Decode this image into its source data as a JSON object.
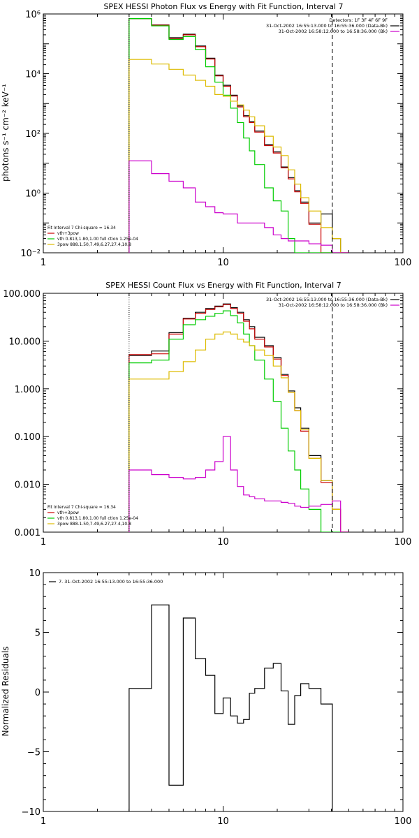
{
  "chart_data": [
    {
      "type": "line",
      "title": "SPEX HESSI Photon Flux vs Energy with Fit Function, Interval 7",
      "ylabel": "photons s⁻¹ cm⁻² keV⁻¹",
      "xlabel": "",
      "xscale": "log",
      "yscale": "log",
      "xlim": [
        1,
        100
      ],
      "ylim": [
        0.01,
        1000000
      ],
      "xticks": [
        {
          "v": 1,
          "label": "1"
        },
        {
          "v": 10,
          "label": "10"
        },
        {
          "v": 100,
          "label": "100"
        }
      ],
      "yticks": [
        {
          "v": 0.01,
          "label": "10⁻²"
        },
        {
          "v": 1,
          "label": "10⁰"
        },
        {
          "v": 100,
          "label": "10²"
        },
        {
          "v": 10000,
          "label": "10⁴"
        },
        {
          "v": 1000000,
          "label": "10⁶"
        }
      ],
      "vlines": [
        {
          "x": 3.0,
          "style": "dotted"
        },
        {
          "x": 40.5,
          "style": "dashed"
        }
      ],
      "legend_top": [
        {
          "text": "Detectors: 1F 3F 4F 6F 9F",
          "color": ""
        },
        {
          "text": "31-Oct-2002 16:55:13.000 to 16:55:36.000 (Data-Bk)",
          "color": "#000000"
        },
        {
          "text": "31-Oct-2002 16:58:12.000 to 16:58:36.000 (Bk)",
          "color": "#cc00cc"
        }
      ],
      "legend_bottom": [
        {
          "text": "Fit Interval  7    Chi-square = 16.34",
          "color": ""
        },
        {
          "text": "vth+3pow",
          "color": "#cc0000"
        },
        {
          "text": "vth 0.813,1.80,1.00   full ction 1.25e-04",
          "color": "#00cc00"
        },
        {
          "text": "3pow 888.1.50,7.49,6.27,27.4,10.8",
          "color": "#ddbb00"
        }
      ],
      "edges": [
        3.0,
        3.5,
        4.0,
        4.5,
        5.0,
        5.5,
        6.0,
        6.5,
        7.0,
        8.0,
        9.0,
        10.0,
        11.0,
        12.0,
        13.0,
        14.0,
        15.0,
        17.0,
        19.0,
        21.0,
        23.0,
        25.0,
        27.0,
        30.0,
        35.0,
        40.5,
        45.0,
        50.0
      ],
      "series": [
        {
          "name": "Data-Bk",
          "color": "#000000",
          "values": [
            700000,
            700000,
            430000,
            430000,
            160000,
            160000,
            210000,
            210000,
            85000,
            33000,
            9000,
            4100,
            1900,
            830,
            390,
            245,
            120,
            42,
            24,
            7.5,
            3.3,
            1.2,
            0.5,
            0.1,
            0.2,
            0.03,
            0.01
          ]
        },
        {
          "name": "vth+3pow",
          "color": "#cc0000",
          "values": [
            700000,
            700000,
            420000,
            420000,
            150000,
            150000,
            200000,
            200000,
            80000,
            31000,
            8400,
            3800,
            1780,
            770,
            360,
            230,
            110,
            39,
            22,
            7.0,
            3.0,
            1.1,
            0.45,
            0.09,
            0.01,
            0.01,
            0.01
          ]
        },
        {
          "name": "vth",
          "color": "#00cc00",
          "values": [
            700000,
            700000,
            400000,
            400000,
            140000,
            140000,
            175000,
            175000,
            65000,
            17000,
            5200,
            1900,
            700,
            230,
            70,
            26,
            9.0,
            1.5,
            0.55,
            0.25,
            0.03,
            0.01,
            0.01,
            0.01,
            0.01,
            0.01,
            0.01
          ]
        },
        {
          "name": "3pow",
          "color": "#ddbb00",
          "values": [
            30000,
            30000,
            21000,
            21000,
            14000,
            14000,
            9000,
            9000,
            6000,
            3800,
            2000,
            1750,
            1200,
            900,
            600,
            360,
            180,
            80,
            35,
            18,
            6.0,
            2.0,
            0.7,
            0.25,
            0.07,
            0.03,
            0.01
          ]
        },
        {
          "name": "Bk",
          "color": "#cc00cc",
          "values": [
            12,
            12,
            4.5,
            4.5,
            2.5,
            2.5,
            1.5,
            1.5,
            0.5,
            0.35,
            0.22,
            0.2,
            0.2,
            0.1,
            0.1,
            0.1,
            0.1,
            0.07,
            0.04,
            0.03,
            0.025,
            0.025,
            0.025,
            0.02,
            0.018,
            0.01,
            0.01
          ]
        }
      ]
    },
    {
      "type": "line",
      "title": "SPEX HESSI Count Flux vs Energy with Fit Function, Interval 7",
      "ylabel": "",
      "xlabel": "",
      "xscale": "log",
      "yscale": "log",
      "xlim": [
        1,
        100
      ],
      "ylim": [
        0.001,
        100
      ],
      "xticks": [
        {
          "v": 1,
          "label": "1"
        },
        {
          "v": 10,
          "label": "10"
        },
        {
          "v": 100,
          "label": "100"
        }
      ],
      "yticks": [
        {
          "v": 0.001,
          "label": "0.001"
        },
        {
          "v": 0.01,
          "label": "0.010"
        },
        {
          "v": 0.1,
          "label": "0.100"
        },
        {
          "v": 1,
          "label": "1.000"
        },
        {
          "v": 10,
          "label": "10.000"
        },
        {
          "v": 100,
          "label": "100.000"
        }
      ],
      "vlines": [
        {
          "x": 3.0,
          "style": "dotted"
        },
        {
          "x": 40.5,
          "style": "dashed"
        }
      ],
      "legend_top": [
        {
          "text": "31-Oct-2002 16:55:13.000 to 16:55:36.000 (Data-Bk)",
          "color": "#000000"
        },
        {
          "text": "31-Oct-2002 16:58:12.000 to 16:58:36.000 (Bk)",
          "color": "#cc00cc"
        }
      ],
      "legend_bottom": [
        {
          "text": "Fit Interval  7    Chi-square = 16.34",
          "color": ""
        },
        {
          "text": "vth+3pow",
          "color": "#cc0000"
        },
        {
          "text": "vth 0.813,1.80,1.00   full ction 1.25e-04",
          "color": "#00cc00"
        },
        {
          "text": "3pow 888.1.50,7.49,6.27,27.4,10.8",
          "color": "#ddbb00"
        }
      ],
      "edges": [
        3.0,
        4.0,
        5.0,
        6.0,
        7.0,
        8.0,
        9.0,
        10.0,
        11.0,
        12.0,
        13.0,
        14.0,
        15.0,
        17.0,
        19.0,
        21.0,
        23.0,
        25.0,
        27.0,
        30.0,
        35.0,
        40.5,
        45.0,
        50.0
      ],
      "series": [
        {
          "name": "Data-Bk",
          "color": "#000000",
          "values": [
            5.0,
            6.2,
            15.0,
            30.0,
            40.0,
            48.0,
            54.0,
            60.0,
            50.0,
            40.0,
            28.0,
            20.0,
            12.0,
            8.0,
            4.5,
            2.0,
            0.9,
            0.4,
            0.15,
            0.04,
            0.012,
            0.003,
            0.001
          ]
        },
        {
          "name": "vth+3pow",
          "color": "#cc0000",
          "values": [
            5.2,
            5.4,
            14.0,
            29.0,
            38.0,
            46.0,
            52.0,
            58.0,
            48.0,
            38.0,
            26.0,
            18.0,
            11.0,
            7.5,
            4.2,
            1.9,
            0.85,
            0.35,
            0.13,
            0.035,
            0.011,
            0.003,
            0.001
          ]
        },
        {
          "name": "vth",
          "color": "#00cc00",
          "values": [
            3.5,
            4.0,
            11.0,
            22.0,
            28.0,
            33.0,
            38.0,
            43.0,
            34.0,
            24.0,
            14.0,
            8.0,
            4.0,
            1.6,
            0.55,
            0.15,
            0.05,
            0.02,
            0.008,
            0.003,
            0.001,
            0.001,
            0.001
          ]
        },
        {
          "name": "3pow",
          "color": "#ddbb00",
          "values": [
            1.6,
            1.6,
            2.3,
            3.7,
            6.5,
            11.0,
            14.0,
            15.5,
            14.0,
            11.0,
            9.5,
            8.0,
            6.5,
            5.0,
            3.0,
            1.7,
            0.85,
            0.35,
            0.14,
            0.035,
            0.012,
            0.003,
            0.001
          ]
        },
        {
          "name": "Bk",
          "color": "#cc00cc",
          "values": [
            0.02,
            0.016,
            0.014,
            0.013,
            0.014,
            0.02,
            0.03,
            0.1,
            0.02,
            0.009,
            0.006,
            0.0055,
            0.005,
            0.0045,
            0.0045,
            0.0042,
            0.004,
            0.0035,
            0.0033,
            0.0035,
            0.0038,
            0.0045,
            0.001
          ]
        }
      ]
    },
    {
      "type": "line",
      "title": "",
      "ylabel": "Normalized Residuals",
      "xlabel": "",
      "xscale": "log",
      "yscale": "linear",
      "xlim": [
        1,
        100
      ],
      "ylim": [
        -10,
        10
      ],
      "xticks": [
        {
          "v": 1,
          "label": "1"
        },
        {
          "v": 10,
          "label": "10"
        },
        {
          "v": 100,
          "label": "100"
        }
      ],
      "yticks": [
        {
          "v": -10,
          "label": "−10"
        },
        {
          "v": -5,
          "label": "−5"
        },
        {
          "v": 0,
          "label": "0"
        },
        {
          "v": 5,
          "label": "5"
        },
        {
          "v": 10,
          "label": "10"
        }
      ],
      "vlines": [],
      "legend_top": [
        {
          "text": "7. 31-Oct-2002 16:55:13.000 to 16:55:36.000",
          "color": "#000000"
        }
      ],
      "legend_bottom": [],
      "edges": [
        3.0,
        4.0,
        5.0,
        6.0,
        7.0,
        8.0,
        9.0,
        10.0,
        11.0,
        12.0,
        13.0,
        14.0,
        15.0,
        17.0,
        19.0,
        21.0,
        23.0,
        25.0,
        27.0,
        30.0,
        35.0,
        40.5
      ],
      "series": [
        {
          "name": "7. 31-Oct-2002 16:55:13.000 to 16:55:36.000",
          "color": "#000000",
          "values": [
            0.3,
            7.3,
            -7.8,
            6.2,
            2.8,
            1.4,
            -1.8,
            -0.5,
            -2.0,
            -2.6,
            -2.3,
            -0.1,
            0.3,
            2.0,
            2.4,
            0.1,
            -2.7,
            -0.3,
            0.7,
            0.3,
            -1.0
          ]
        }
      ]
    }
  ]
}
